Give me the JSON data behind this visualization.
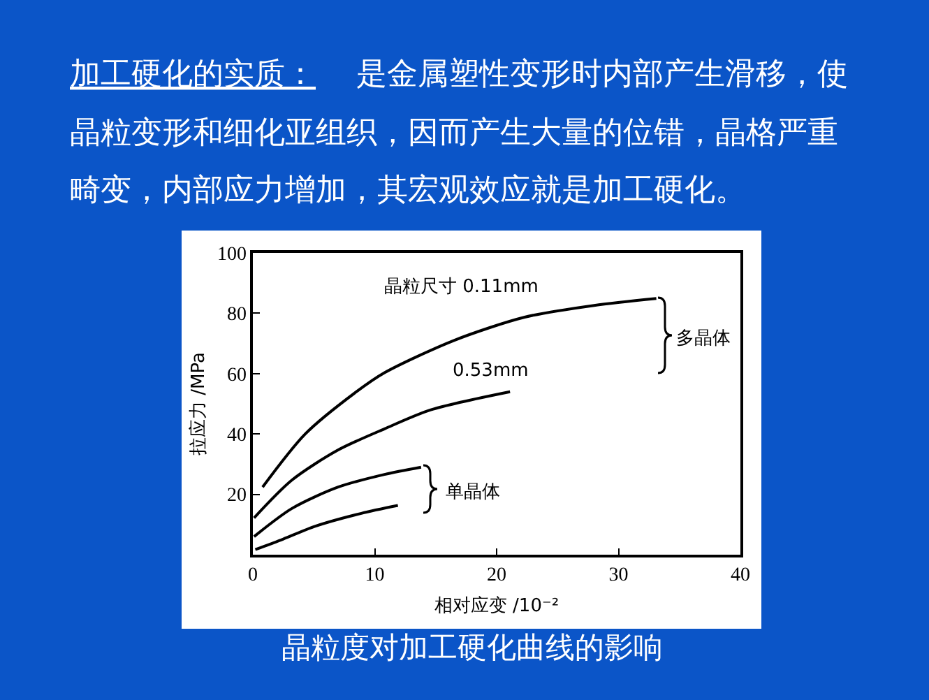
{
  "chart_data": {
    "type": "line",
    "title": "晶粒度对加工硬化曲线的影响",
    "subtitle": "加工硬化的实质：",
    "xlabel": "相对应变 /10⁻²",
    "ylabel": "拉应力 /MPa",
    "xlim": [
      0,
      40
    ],
    "ylim": [
      0,
      100
    ],
    "xticks": [
      0,
      10,
      20,
      30,
      40
    ],
    "yticks": [
      20,
      40,
      60,
      80,
      100
    ],
    "series": [
      {
        "color": "#000000",
        "x": [
          0.8,
          4.3,
          8.5,
          10.8,
          16.5,
          22.3,
          28,
          33.1
        ],
        "values": [
          22.4,
          40,
          54,
          60.3,
          71,
          78.7,
          82.6,
          84.9
        ]
      },
      {
        "color": "#000000",
        "x": [
          0.1,
          3.2,
          7,
          10.8,
          14.6,
          21.1
        ],
        "values": [
          12.2,
          24.7,
          34.7,
          41.7,
          48,
          54
        ]
      },
      {
        "color": "#000000",
        "x": [
          0.1,
          3.2,
          7,
          10.8,
          13.8
        ],
        "values": [
          6,
          15.3,
          22.4,
          26.6,
          29
        ]
      },
      {
        "color": "#000000",
        "x": [
          0.2,
          2.5,
          5.1,
          8.9,
          11.9
        ],
        "values": [
          1.7,
          5.2,
          9.4,
          13.7,
          16.3
        ]
      }
    ],
    "annotations": [
      "是金属塑性变形时内部产生滑移，使晶粒变形和细化亚组织，因而产生大量的位错，晶格严重畸变，内部应力增加，其宏观效应就是加工硬化。",
      "晶粒尺寸 0.11mm",
      "0.53mm",
      "多晶体",
      "单晶体"
    ]
  }
}
